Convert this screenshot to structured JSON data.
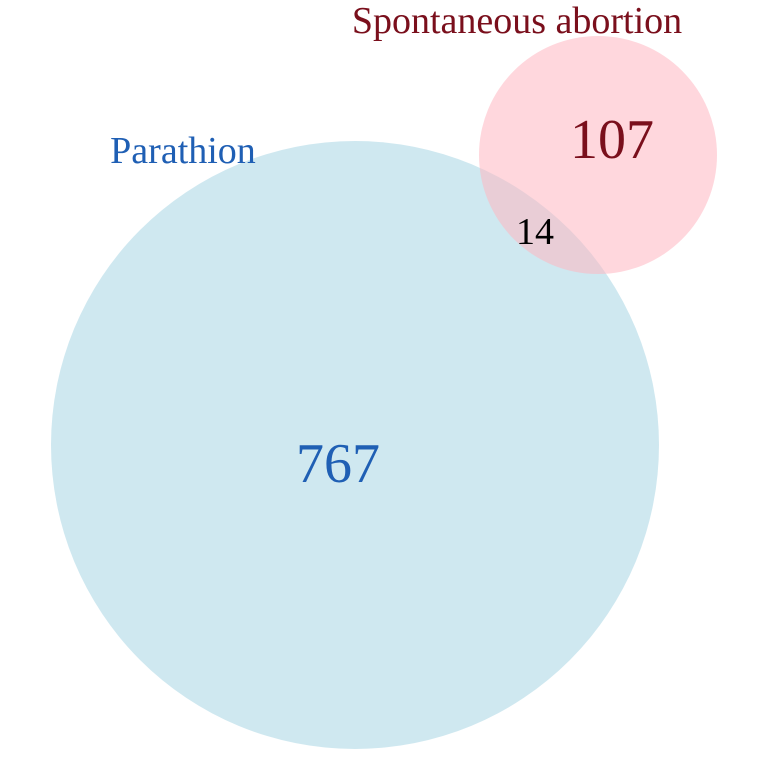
{
  "venn": {
    "sets": [
      {
        "name": "Parathion",
        "count": "767",
        "fill": "#add8e6",
        "label_color": "#1f5fb4"
      },
      {
        "name": "Spontaneous abortion",
        "count": "107",
        "fill": "#ffb6c1",
        "label_color": "#7a0f1c"
      }
    ],
    "intersection": {
      "count": "14",
      "color": "#000000"
    }
  }
}
